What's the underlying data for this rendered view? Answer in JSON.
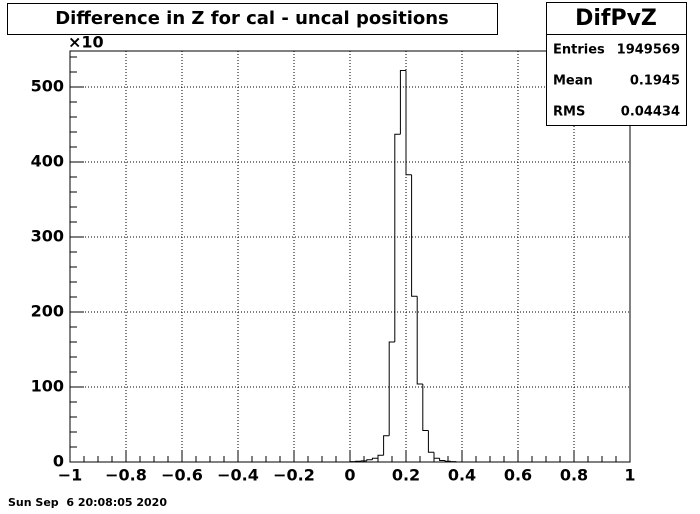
{
  "chart_data": {
    "type": "histogram",
    "title": "Difference in Z for cal - uncal positions",
    "y_multiplier": "×10",
    "bins": [
      0,
      0.02,
      0.04,
      0.06,
      0.08,
      0.1,
      0.12,
      0.14,
      0.16,
      0.18,
      0.2,
      0.22,
      0.24,
      0.26,
      0.28,
      0.3,
      0.32,
      0.34,
      0.36,
      0.38,
      0.4
    ],
    "values": [
      0.5,
      1,
      1.5,
      3,
      5,
      9,
      35,
      160,
      437,
      522,
      383,
      221,
      104,
      42,
      13,
      5,
      2,
      1,
      0.5,
      0
    ],
    "color": "#000000",
    "xlim": [
      -1,
      1
    ],
    "ylim": [
      0,
      548
    ],
    "xticks": [
      {
        "value": -1,
        "label": "−1"
      },
      {
        "value": -0.8,
        "label": "−0.8"
      },
      {
        "value": -0.6,
        "label": "−0.6"
      },
      {
        "value": -0.4,
        "label": "−0.4"
      },
      {
        "value": -0.2,
        "label": "−0.2"
      },
      0,
      0.2,
      0.4,
      0.6,
      0.8,
      1
    ],
    "yticks": [
      0,
      100,
      200,
      300,
      400,
      500
    ],
    "grid": true,
    "stats": {
      "name": "DifPvZ",
      "rows": [
        {
          "label": "Entries",
          "value": 1949569
        },
        {
          "label": "Mean",
          "value": 0.1945
        },
        {
          "label": "RMS",
          "value": 0.04434
        }
      ]
    },
    "footer": "Sun Sep  6 20:08:05 2020"
  }
}
